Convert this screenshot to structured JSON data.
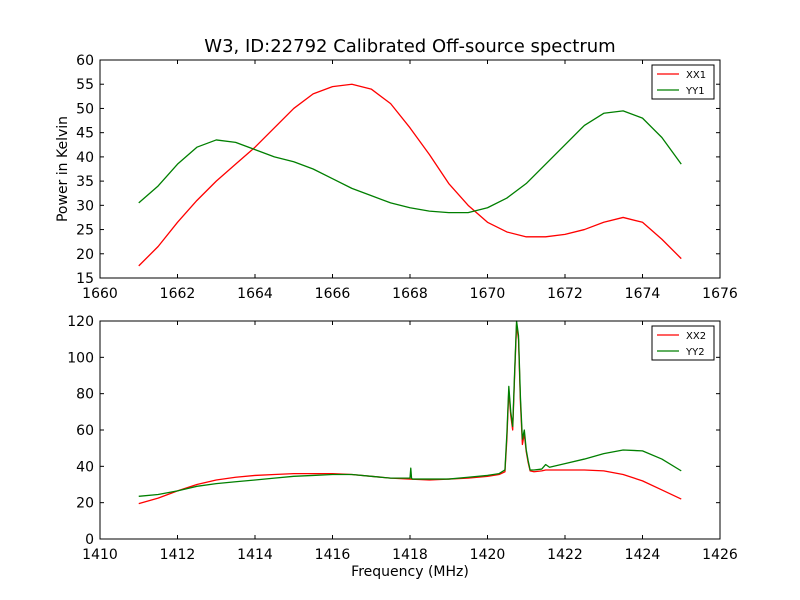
{
  "figure": {
    "title": "W3, ID:22792 Calibrated Off-source spectrum"
  },
  "colors": {
    "xx": "#ff0000",
    "yy": "#007f00"
  },
  "chart_data": [
    {
      "type": "line",
      "title": "W3, ID:22792 Calibrated Off-source spectrum",
      "xlabel": "",
      "ylabel": "Power in Kelvin",
      "xlim": [
        1660,
        1676
      ],
      "ylim": [
        15,
        60
      ],
      "xticks": [
        1660,
        1662,
        1664,
        1666,
        1668,
        1670,
        1672,
        1674,
        1676
      ],
      "yticks": [
        15,
        20,
        25,
        30,
        35,
        40,
        45,
        50,
        55,
        60
      ],
      "grid": false,
      "legend": "top-right",
      "series": [
        {
          "name": "XX1",
          "color": "#ff0000",
          "x": [
            1661.0,
            1661.5,
            1662.0,
            1662.5,
            1663.0,
            1663.5,
            1664.0,
            1664.5,
            1665.0,
            1665.5,
            1666.0,
            1666.5,
            1667.0,
            1667.5,
            1668.0,
            1668.5,
            1669.0,
            1669.5,
            1670.0,
            1670.5,
            1671.0,
            1671.5,
            1672.0,
            1672.5,
            1673.0,
            1673.5,
            1674.0,
            1674.5,
            1675.0
          ],
          "y": [
            17.5,
            21.5,
            26.5,
            31.0,
            35.0,
            38.5,
            42.0,
            46.0,
            50.0,
            53.0,
            54.5,
            55.0,
            54.0,
            51.0,
            46.0,
            40.5,
            34.5,
            30.0,
            26.5,
            24.5,
            23.5,
            23.5,
            24.0,
            25.0,
            26.5,
            27.5,
            26.5,
            23.0,
            19.0
          ]
        },
        {
          "name": "YY1",
          "color": "#007f00",
          "x": [
            1661.0,
            1661.5,
            1662.0,
            1662.5,
            1663.0,
            1663.5,
            1664.0,
            1664.5,
            1665.0,
            1665.5,
            1666.0,
            1666.5,
            1667.0,
            1667.5,
            1668.0,
            1668.5,
            1669.0,
            1669.5,
            1670.0,
            1670.5,
            1671.0,
            1671.5,
            1672.0,
            1672.5,
            1673.0,
            1673.5,
            1674.0,
            1674.5,
            1675.0
          ],
          "y": [
            30.5,
            34.0,
            38.5,
            42.0,
            43.5,
            43.0,
            41.5,
            40.0,
            39.0,
            37.5,
            35.5,
            33.5,
            32.0,
            30.5,
            29.5,
            28.8,
            28.5,
            28.5,
            29.5,
            31.5,
            34.5,
            38.5,
            42.5,
            46.5,
            49.0,
            49.5,
            48.0,
            44.0,
            38.5
          ]
        }
      ]
    },
    {
      "type": "line",
      "title": "",
      "xlabel": "Frequency (MHz)",
      "ylabel": "",
      "xlim": [
        1410,
        1426
      ],
      "ylim": [
        0,
        120
      ],
      "xticks": [
        1410,
        1412,
        1414,
        1416,
        1418,
        1420,
        1422,
        1424,
        1426
      ],
      "yticks": [
        0,
        20,
        40,
        60,
        80,
        100,
        120
      ],
      "grid": false,
      "legend": "top-right",
      "series": [
        {
          "name": "XX2",
          "color": "#ff0000",
          "x": [
            1411.0,
            1411.5,
            1412.0,
            1412.5,
            1413.0,
            1413.5,
            1414.0,
            1414.5,
            1415.0,
            1415.5,
            1416.0,
            1416.5,
            1417.0,
            1417.5,
            1418.0,
            1418.5,
            1419.0,
            1419.5,
            1420.0,
            1420.3,
            1420.45,
            1420.5,
            1420.55,
            1420.6,
            1420.65,
            1420.7,
            1420.75,
            1420.8,
            1420.85,
            1420.9,
            1420.95,
            1421.0,
            1421.05,
            1421.1,
            1421.2,
            1421.4,
            1421.5,
            1422.0,
            1422.5,
            1423.0,
            1423.5,
            1424.0,
            1424.5,
            1425.0
          ],
          "y": [
            19.5,
            22.5,
            26.5,
            30.0,
            32.5,
            34.0,
            35.0,
            35.5,
            36.0,
            36.0,
            36.0,
            35.5,
            34.5,
            33.5,
            33.0,
            32.5,
            33.0,
            33.5,
            34.5,
            35.5,
            37.0,
            55.0,
            82.0,
            68.0,
            60.0,
            90.0,
            118.0,
            110.0,
            75.0,
            52.0,
            58.0,
            48.0,
            42.0,
            37.5,
            37.0,
            37.5,
            38.0,
            38.0,
            38.0,
            37.5,
            35.5,
            32.0,
            27.0,
            22.0
          ]
        },
        {
          "name": "YY2",
          "color": "#007f00",
          "x": [
            1411.0,
            1411.5,
            1412.0,
            1412.5,
            1413.0,
            1413.5,
            1414.0,
            1414.5,
            1415.0,
            1415.5,
            1416.0,
            1416.5,
            1417.0,
            1417.5,
            1418.0,
            1418.02,
            1418.04,
            1418.06,
            1418.5,
            1419.0,
            1419.5,
            1420.0,
            1420.3,
            1420.45,
            1420.5,
            1420.55,
            1420.6,
            1420.65,
            1420.7,
            1420.75,
            1420.8,
            1420.85,
            1420.9,
            1420.95,
            1421.0,
            1421.05,
            1421.1,
            1421.2,
            1421.4,
            1421.5,
            1421.6,
            1422.0,
            1422.5,
            1423.0,
            1423.5,
            1424.0,
            1424.5,
            1425.0
          ],
          "y": [
            23.5,
            24.5,
            26.5,
            29.0,
            30.5,
            31.5,
            32.5,
            33.5,
            34.5,
            35.0,
            35.5,
            35.5,
            34.5,
            33.5,
            33.5,
            39.0,
            33.5,
            33.0,
            33.0,
            33.0,
            34.0,
            35.0,
            36.0,
            38.0,
            58.0,
            84.0,
            70.0,
            62.0,
            92.0,
            120.0,
            112.0,
            78.0,
            55.0,
            60.0,
            49.0,
            43.0,
            38.0,
            38.0,
            38.5,
            41.0,
            39.5,
            41.5,
            44.0,
            47.0,
            49.0,
            48.5,
            44.0,
            37.5
          ]
        }
      ]
    }
  ]
}
